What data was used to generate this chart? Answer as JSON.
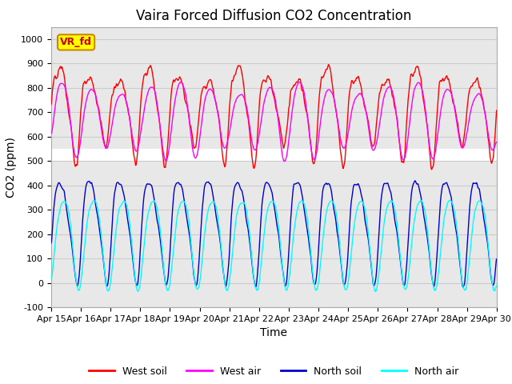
{
  "title": "Vaira Forced Diffusion CO2 Concentration",
  "xlabel": "Time",
  "ylabel": "CO2 (ppm)",
  "ylim": [
    -100,
    1050
  ],
  "yticks": [
    -100,
    0,
    100,
    200,
    300,
    400,
    500,
    600,
    700,
    800,
    900,
    1000
  ],
  "xlim": [
    0,
    15
  ],
  "xtick_labels": [
    "Apr 15",
    "Apr 16",
    "Apr 17",
    "Apr 18",
    "Apr 19",
    "Apr 20",
    "Apr 21",
    "Apr 22",
    "Apr 23",
    "Apr 24",
    "Apr 25",
    "Apr 26",
    "Apr 27",
    "Apr 28",
    "Apr 29",
    "Apr 30"
  ],
  "colors": {
    "west_soil": "#ff0000",
    "west_air": "#ff00ff",
    "north_soil": "#0000cc",
    "north_air": "#00ffff"
  },
  "annotation_text": "VR_fd",
  "annotation_bg": "#ffff00",
  "annotation_border": "#cc8800",
  "grid_color": "#cccccc",
  "band_color": "#e8e8e8",
  "band_ranges": [
    [
      550,
      1050
    ],
    [
      -100,
      500
    ]
  ],
  "title_fontsize": 12,
  "axis_fontsize": 10,
  "tick_fontsize": 8,
  "legend_fontsize": 9,
  "linewidth": 1.0
}
